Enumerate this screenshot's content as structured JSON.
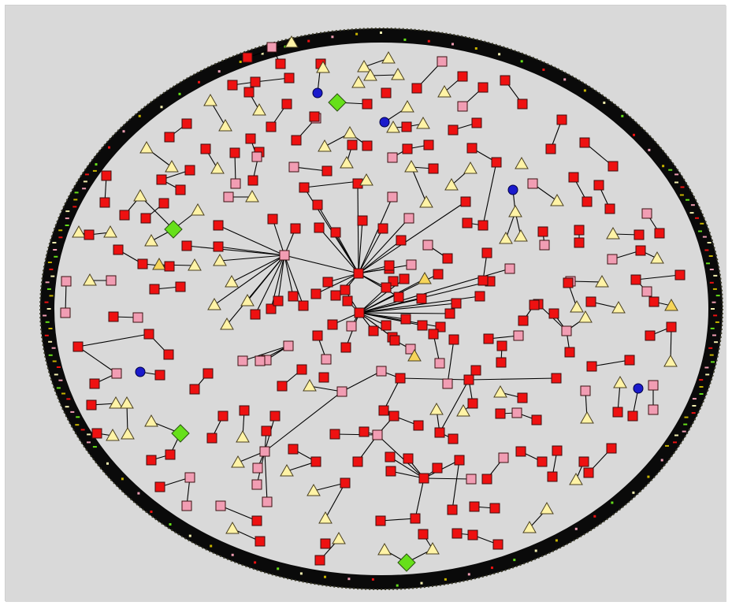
{
  "view": {
    "type": "network-graph",
    "layout": "radial-with-perimeter-ring"
  },
  "colors": {
    "background": "#d9d9d9",
    "edge": "#000000",
    "ring": "#0a0a0a",
    "node_red": "#ee1111",
    "node_pink": "#f19db3",
    "node_yellow": "#fff3a6",
    "node_gold": "#f6d55a",
    "node_green": "#66e01a",
    "node_blue": "#1a1acc"
  },
  "node_types": [
    {
      "key": "red",
      "shape": "square-icon"
    },
    {
      "key": "pink",
      "shape": "square-icon"
    },
    {
      "key": "yellow",
      "shape": "triangle-icon"
    },
    {
      "key": "gold",
      "shape": "triangle-icon"
    },
    {
      "key": "green",
      "shape": "diamond-icon"
    },
    {
      "key": "blue",
      "shape": "circle-icon"
    }
  ]
}
